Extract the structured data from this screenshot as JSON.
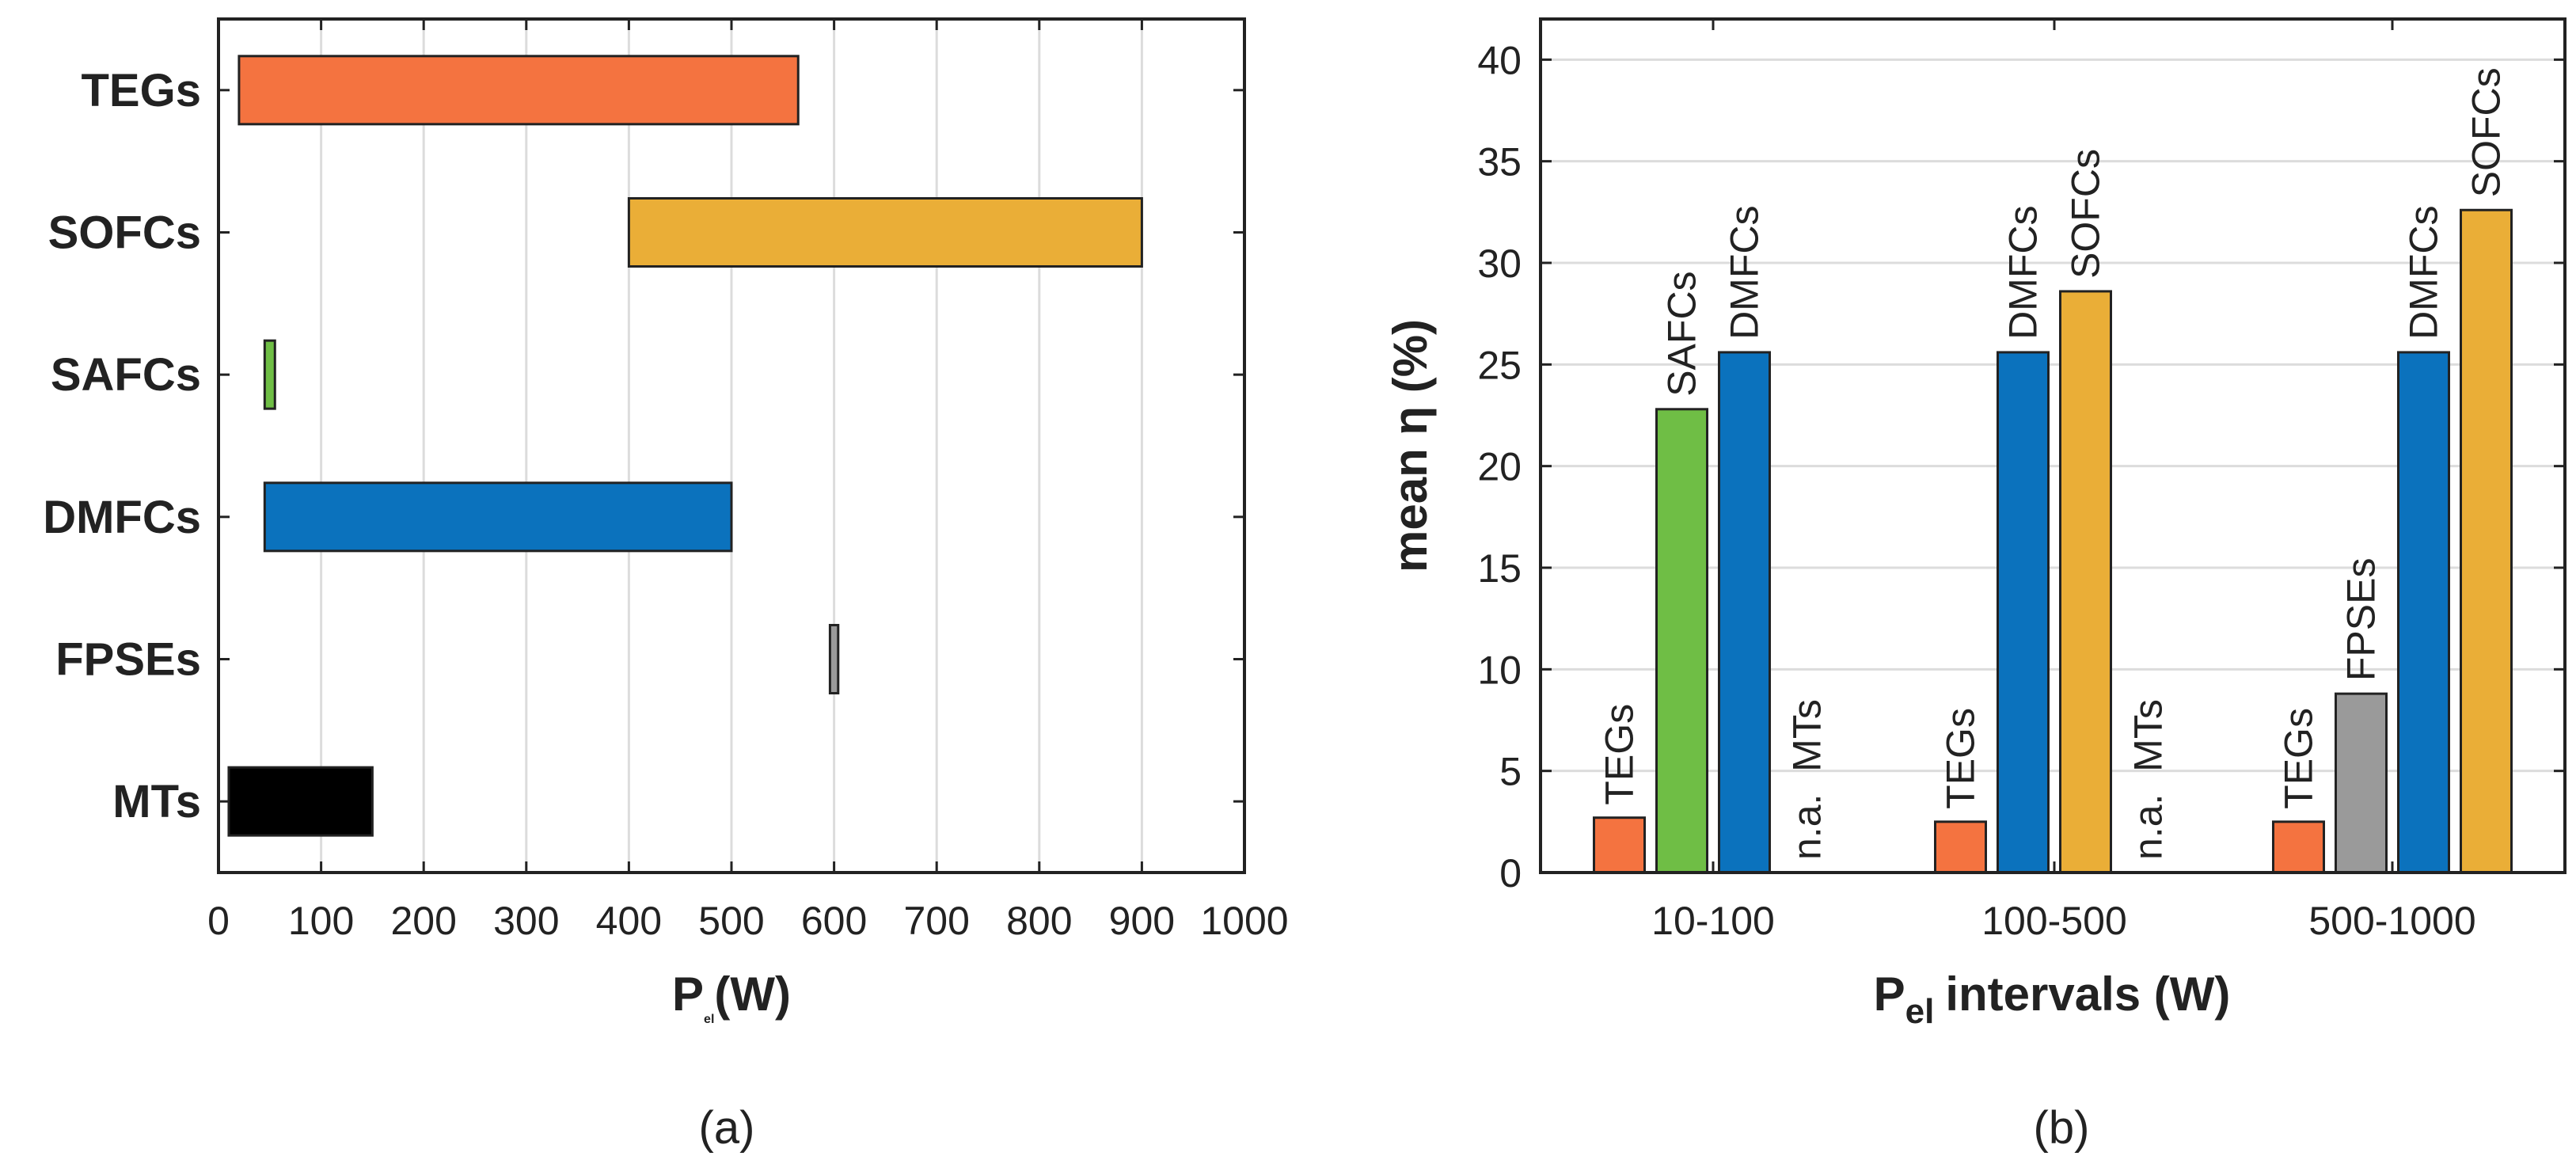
{
  "chart_data": [
    {
      "type": "bar",
      "orientation": "horizontal",
      "categories": [
        "TEGs",
        "SOFCs",
        "SAFCs",
        "DMFCs",
        "FPSEs",
        "MTs"
      ],
      "ranges": [
        [
          20,
          565
        ],
        [
          400,
          900
        ],
        [
          45,
          55
        ],
        [
          45,
          500
        ],
        [
          596,
          604
        ],
        [
          10,
          150
        ]
      ],
      "colors": [
        "#f47340",
        "#eaae37",
        "#6fbe45",
        "#0b72bd",
        "#9a9a9a",
        "#000000"
      ],
      "xlabel": "P",
      "xlabel_sub": "el",
      "xlabel_unit": "(W)",
      "xlim": [
        0,
        1000
      ],
      "xticks": [
        "0",
        "100",
        "200",
        "300",
        "400",
        "500",
        "600",
        "700",
        "800",
        "900",
        "1000"
      ],
      "grid": "vertical",
      "caption": "(a)"
    },
    {
      "type": "bar",
      "orientation": "vertical",
      "categories": [
        "10-100",
        "100-500",
        "500-1000"
      ],
      "groups": [
        {
          "interval": "10-100",
          "bars": [
            {
              "label": "TEGs",
              "value": 2.7,
              "color": "#f47340"
            },
            {
              "label": "SAFCs",
              "value": 22.8,
              "color": "#6fbe45"
            },
            {
              "label": "DMFCs",
              "value": 25.6,
              "color": "#0b72bd"
            },
            {
              "label": "n.a.  MTs",
              "value": null,
              "color": ""
            }
          ]
        },
        {
          "interval": "100-500",
          "bars": [
            {
              "label": "TEGs",
              "value": 2.5,
              "color": "#f47340"
            },
            {
              "label": "DMFCs",
              "value": 25.6,
              "color": "#0b72bd"
            },
            {
              "label": "SOFCs",
              "value": 28.6,
              "color": "#eaae37"
            },
            {
              "label": "n.a.  MTs",
              "value": null,
              "color": ""
            }
          ]
        },
        {
          "interval": "500-1000",
          "bars": [
            {
              "label": "TEGs",
              "value": 2.5,
              "color": "#f47340"
            },
            {
              "label": "FPSEs",
              "value": 8.8,
              "color": "#9a9a9a"
            },
            {
              "label": "DMFCs",
              "value": 25.6,
              "color": "#0b72bd"
            },
            {
              "label": "SOFCs",
              "value": 32.6,
              "color": "#eaae37"
            }
          ]
        }
      ],
      "ylabel": "mean η (%)",
      "xlabel": "P",
      "xlabel_sub": "el",
      "xlabel_unit": "intervals (W)",
      "ylim": [
        0,
        42
      ],
      "yticks": [
        "0",
        "5",
        "10",
        "15",
        "20",
        "25",
        "30",
        "35",
        "40"
      ],
      "grid": "horizontal",
      "caption": "(b)"
    }
  ]
}
